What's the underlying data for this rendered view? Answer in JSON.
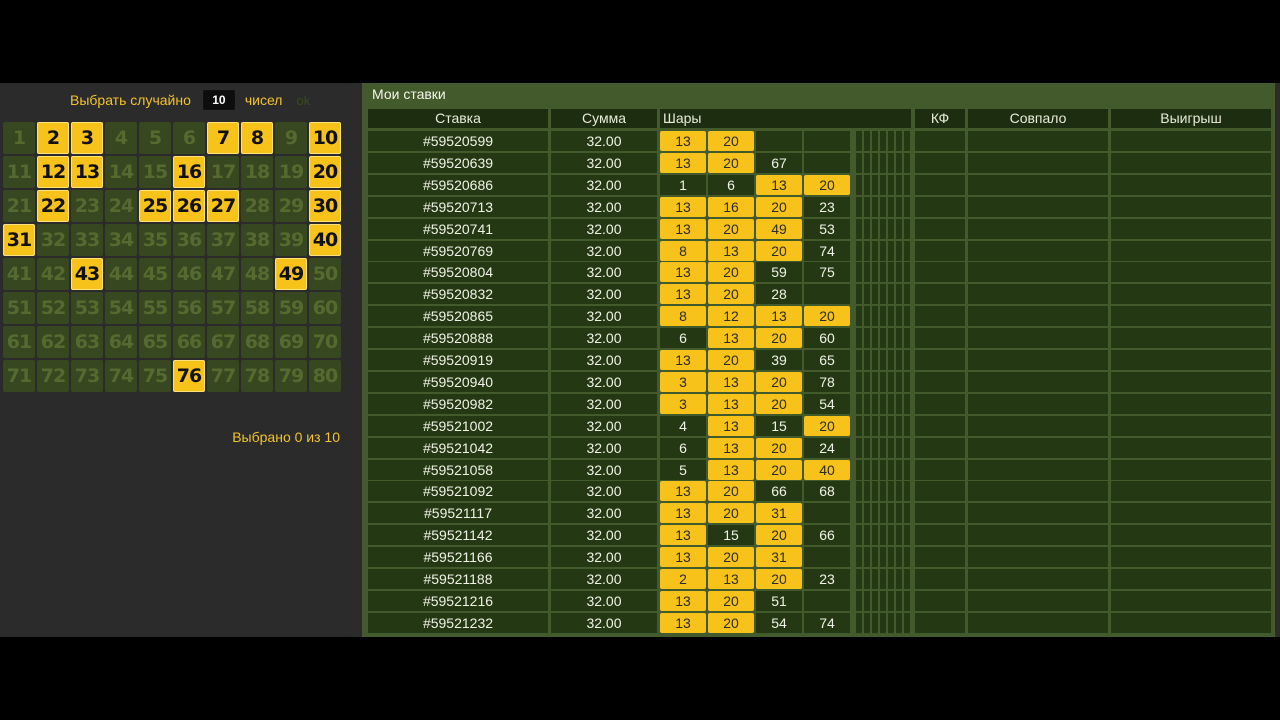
{
  "random_pick": {
    "label_before": "Выбрать случайно",
    "count": "10",
    "label_after": "чисел",
    "ok": "ok"
  },
  "board": {
    "numbers": [
      1,
      2,
      3,
      4,
      5,
      6,
      7,
      8,
      9,
      10,
      11,
      12,
      13,
      14,
      15,
      16,
      17,
      18,
      19,
      20,
      21,
      22,
      23,
      24,
      25,
      26,
      27,
      28,
      29,
      30,
      31,
      32,
      33,
      34,
      35,
      36,
      37,
      38,
      39,
      40,
      41,
      42,
      43,
      44,
      45,
      46,
      47,
      48,
      49,
      50,
      51,
      52,
      53,
      54,
      55,
      56,
      57,
      58,
      59,
      60,
      61,
      62,
      63,
      64,
      65,
      66,
      67,
      68,
      69,
      70,
      71,
      72,
      73,
      74,
      75,
      76,
      77,
      78,
      79,
      80
    ],
    "highlighted": [
      2,
      3,
      7,
      8,
      10,
      12,
      13,
      16,
      20,
      22,
      25,
      26,
      27,
      30,
      31,
      40,
      43,
      49,
      76
    ]
  },
  "picked_status": "Выбрано 0 из 10",
  "bets_panel": {
    "title": "Мои ставки",
    "headers": {
      "bet": "Ставка",
      "sum": "Сумма",
      "balls": "Шары",
      "kf": "КФ",
      "matched": "Совпало",
      "win": "Выигрыш"
    },
    "hit_numbers": [
      "2",
      "3",
      "8",
      "12",
      "13",
      "16",
      "20",
      "31",
      "40",
      "49"
    ],
    "rows": [
      {
        "id": "#59520599",
        "sum": "32.00",
        "balls": [
          "13",
          "20"
        ]
      },
      {
        "id": "#59520639",
        "sum": "32.00",
        "balls": [
          "13",
          "20",
          "67"
        ]
      },
      {
        "id": "#59520686",
        "sum": "32.00",
        "balls": [
          "1",
          "6",
          "13",
          "20"
        ]
      },
      {
        "id": "#59520713",
        "sum": "32.00",
        "balls": [
          "13",
          "16",
          "20",
          "23"
        ]
      },
      {
        "id": "#59520741",
        "sum": "32.00",
        "balls": [
          "13",
          "20",
          "49",
          "53"
        ]
      },
      {
        "id": "#59520769",
        "sum": "32.00",
        "balls": [
          "8",
          "13",
          "20",
          "74"
        ]
      },
      {
        "id": "#59520804",
        "sum": "32.00",
        "balls": [
          "13",
          "20",
          "59",
          "75"
        ]
      },
      {
        "id": "#59520832",
        "sum": "32.00",
        "balls": [
          "13",
          "20",
          "28"
        ]
      },
      {
        "id": "#59520865",
        "sum": "32.00",
        "balls": [
          "8",
          "12",
          "13",
          "20"
        ]
      },
      {
        "id": "#59520888",
        "sum": "32.00",
        "balls": [
          "6",
          "13",
          "20",
          "60"
        ]
      },
      {
        "id": "#59520919",
        "sum": "32.00",
        "balls": [
          "13",
          "20",
          "39",
          "65"
        ]
      },
      {
        "id": "#59520940",
        "sum": "32.00",
        "balls": [
          "3",
          "13",
          "20",
          "78"
        ]
      },
      {
        "id": "#59520982",
        "sum": "32.00",
        "balls": [
          "3",
          "13",
          "20",
          "54"
        ]
      },
      {
        "id": "#59521002",
        "sum": "32.00",
        "balls": [
          "4",
          "13",
          "15",
          "20"
        ]
      },
      {
        "id": "#59521042",
        "sum": "32.00",
        "balls": [
          "6",
          "13",
          "20",
          "24"
        ]
      },
      {
        "id": "#59521058",
        "sum": "32.00",
        "balls": [
          "5",
          "13",
          "20",
          "40"
        ]
      },
      {
        "id": "#59521092",
        "sum": "32.00",
        "balls": [
          "13",
          "20",
          "66",
          "68"
        ]
      },
      {
        "id": "#59521117",
        "sum": "32.00",
        "balls": [
          "13",
          "20",
          "31"
        ]
      },
      {
        "id": "#59521142",
        "sum": "32.00",
        "balls": [
          "13",
          "15",
          "20",
          "66"
        ]
      },
      {
        "id": "#59521166",
        "sum": "32.00",
        "balls": [
          "13",
          "20",
          "31"
        ]
      },
      {
        "id": "#59521188",
        "sum": "32.00",
        "balls": [
          "2",
          "13",
          "20",
          "23"
        ]
      },
      {
        "id": "#59521216",
        "sum": "32.00",
        "balls": [
          "13",
          "20",
          "51"
        ]
      },
      {
        "id": "#59521232",
        "sum": "32.00",
        "balls": [
          "13",
          "20",
          "54",
          "74"
        ]
      }
    ]
  },
  "colors": {
    "highlight": "#f7c21a",
    "cell": "#37471f",
    "panel": "#435a2c",
    "row_cell": "#253814",
    "header": "#1d2d10",
    "accent_text": "#f2c230"
  }
}
